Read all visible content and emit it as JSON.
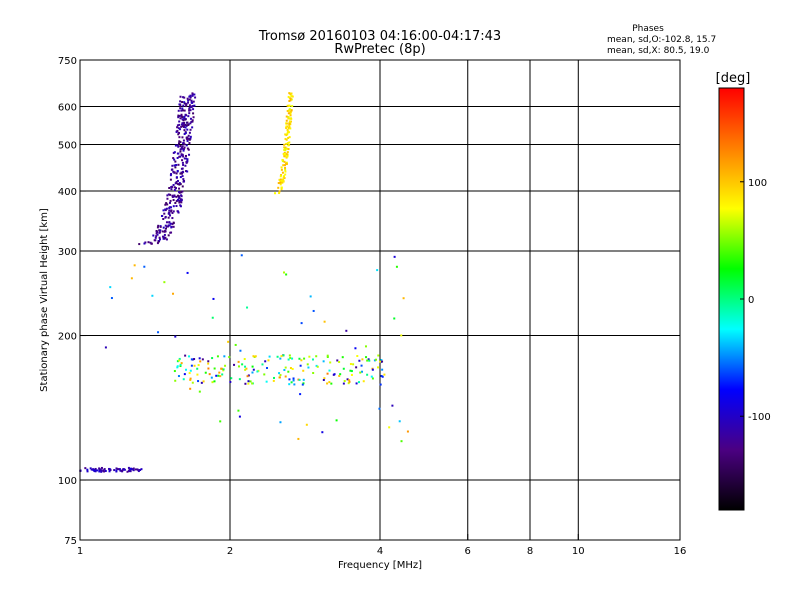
{
  "chart_data": {
    "type": "scatter",
    "title": "Tromsø 20160103 04:16:00-04:17:43",
    "subtitle": "RwPretec (8p)",
    "xlabel": "Frequency [MHz]",
    "ylabel": "Stationary phase Virtual Height [km]",
    "x_scale": "log",
    "y_scale": "log",
    "xlim": [
      1,
      16
    ],
    "ylim": [
      75,
      750
    ],
    "x_ticks": [
      1,
      2,
      4,
      6,
      8,
      10,
      16
    ],
    "y_ticks": [
      75,
      100,
      200,
      300,
      400,
      500,
      600,
      750
    ],
    "x_grid": [
      2,
      4,
      6,
      8,
      10
    ],
    "y_grid": [
      100,
      200,
      300,
      400,
      500,
      600
    ],
    "grid": true,
    "stats": {
      "heading": "Phases",
      "line_o": "mean, sd,O:-102.8, 15.7",
      "line_x": "mean, sd,X:  80.5, 19.0"
    },
    "colorbar": {
      "label": "[deg]",
      "ticks": [
        100,
        0,
        -100
      ],
      "range": [
        -180,
        180
      ],
      "colors": [
        "#000000",
        "#4b0082",
        "#0000ff",
        "#00ffff",
        "#00ff00",
        "#ffff00",
        "#ff8000",
        "#ff0000"
      ]
    },
    "clusters": [
      {
        "name": "o-low",
        "freq": [
          1.0,
          1.33
        ],
        "height": [
          104,
          106
        ],
        "phase": -110,
        "count": 70,
        "spread": 0.005
      },
      {
        "name": "o-F-trace",
        "freq": [
          1.32,
          1.72
        ],
        "height": [
          310,
          640
        ],
        "phase": -120,
        "count": 360,
        "spread": 0.05
      },
      {
        "name": "x-F-trace",
        "freq": [
          2.45,
          2.65
        ],
        "height": [
          395,
          640
        ],
        "phase": 90,
        "count": 140,
        "spread": 0.025
      },
      {
        "name": "E-band-mixed",
        "freq": [
          1.55,
          4.1
        ],
        "height": [
          158,
          182
        ],
        "phase": 40,
        "count": 190,
        "spread": 0.08
      },
      {
        "name": "scatter-mixed",
        "freq": [
          1.1,
          4.6
        ],
        "height": [
          120,
          300
        ],
        "phase": 0,
        "count": 60,
        "spread": 0.4
      }
    ]
  }
}
